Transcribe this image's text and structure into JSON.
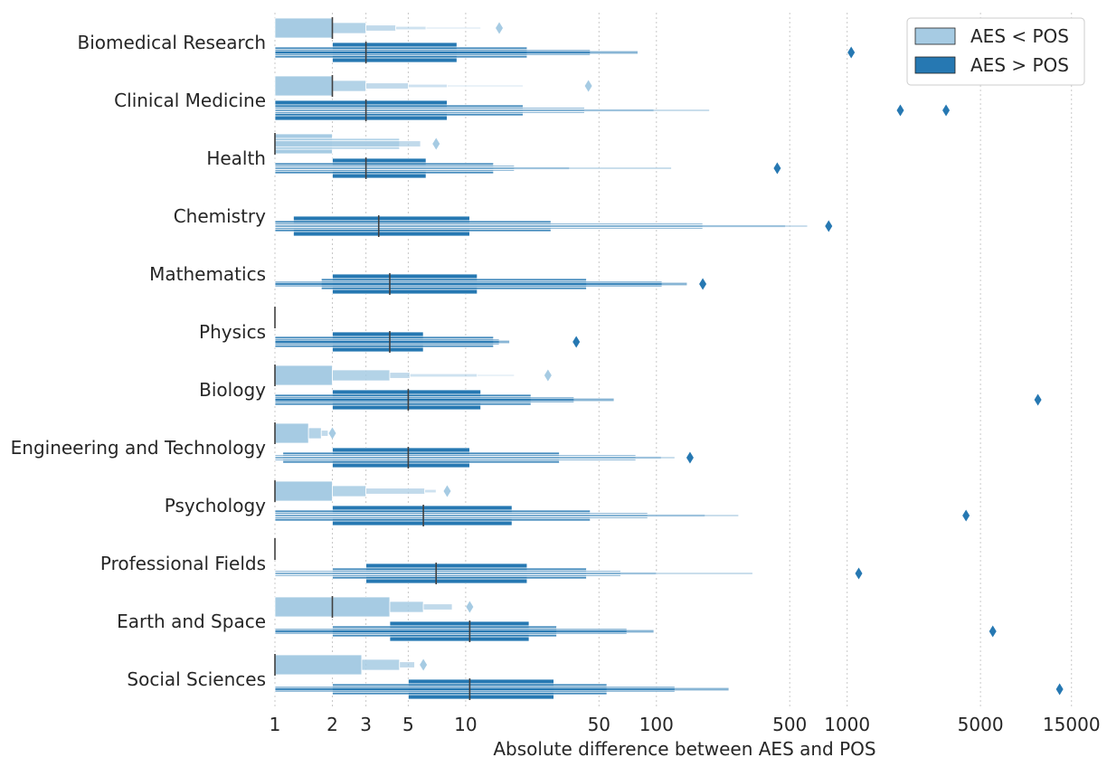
{
  "chart_data": {
    "type": "boxen",
    "orientation": "horizontal",
    "xscale": "log",
    "xlim": [
      1,
      20000
    ],
    "xlabel": "Absolute difference between AES and POS",
    "ylabel": "",
    "grid": "vertical dotted",
    "legend_position": "top-right",
    "x_ticks": [
      1,
      2,
      3,
      5,
      10,
      50,
      100,
      500,
      1000,
      5000,
      15000
    ],
    "x_tick_labels": [
      "1",
      "2",
      "3",
      "5",
      "10",
      "50",
      "100",
      "500",
      "1000",
      "5000",
      "15000"
    ],
    "colors": {
      "AES < POS": "#a6cbe3",
      "AES > POS": "#2678b2",
      "median": "#404040",
      "grid": "#c8c8c8"
    },
    "series_names": [
      "AES < POS",
      "AES > POS"
    ],
    "categories": [
      {
        "name": "Biomedical Research",
        "lt": {
          "median": 2,
          "boxes": [
            [
              1,
              2
            ],
            [
              2,
              3
            ],
            [
              3,
              4.3
            ],
            [
              4.3,
              6.2
            ],
            [
              6.2,
              12
            ]
          ],
          "outliers": [
            15
          ]
        },
        "gt": {
          "median": 3,
          "boxes": [
            [
              2,
              9
            ],
            [
              1,
              21
            ],
            [
              1,
              45
            ],
            [
              1,
              80
            ]
          ],
          "outliers": [
            1050
          ]
        }
      },
      {
        "name": "Clinical Medicine",
        "lt": {
          "median": 2,
          "boxes": [
            [
              1,
              2
            ],
            [
              2,
              3
            ],
            [
              3,
              5
            ],
            [
              5,
              8
            ],
            [
              8,
              20
            ]
          ],
          "outliers": [
            44
          ]
        },
        "gt": {
          "median": 3,
          "boxes": [
            [
              1,
              8
            ],
            [
              1,
              20
            ],
            [
              1,
              42
            ],
            [
              1,
              97
            ],
            [
              1,
              190
            ]
          ],
          "outliers": [
            1900,
            3300
          ]
        }
      },
      {
        "name": "Health",
        "lt": {
          "median": 1,
          "boxes": [
            [
              1,
              2
            ],
            [
              1,
              4.5
            ],
            [
              1,
              5.8
            ]
          ],
          "outliers": [
            7
          ]
        },
        "gt": {
          "median": 3,
          "boxes": [
            [
              2,
              6.2
            ],
            [
              1,
              14
            ],
            [
              1,
              18
            ],
            [
              1,
              35
            ],
            [
              1,
              120
            ]
          ],
          "outliers": [
            430
          ]
        }
      },
      {
        "name": "Chemistry",
        "lt": null,
        "gt": {
          "median": 3.5,
          "boxes": [
            [
              1.25,
              10.5
            ],
            [
              1,
              28
            ],
            [
              1,
              175
            ],
            [
              1,
              475
            ],
            [
              1,
              620
            ]
          ],
          "outliers": [
            800
          ]
        }
      },
      {
        "name": "Mathematics",
        "lt": null,
        "gt": {
          "median": 4,
          "boxes": [
            [
              2,
              11.5
            ],
            [
              1.75,
              43
            ],
            [
              1,
              107
            ],
            [
              1,
              145
            ]
          ],
          "outliers": [
            175
          ]
        }
      },
      {
        "name": "Physics",
        "lt": {
          "median": 1,
          "boxes": [],
          "outliers": []
        },
        "gt": {
          "median": 4,
          "boxes": [
            [
              2,
              6
            ],
            [
              1,
              14
            ],
            [
              1,
              15
            ],
            [
              1,
              17
            ]
          ],
          "outliers": [
            38
          ]
        }
      },
      {
        "name": "Biology",
        "lt": {
          "median": 1,
          "boxes": [
            [
              1,
              2
            ],
            [
              2,
              4
            ],
            [
              4,
              5.1
            ],
            [
              5.1,
              11.5
            ],
            [
              11.5,
              18
            ]
          ],
          "outliers": [
            27
          ]
        },
        "gt": {
          "median": 5,
          "boxes": [
            [
              2,
              12
            ],
            [
              1,
              22
            ],
            [
              1,
              37
            ],
            [
              1,
              60
            ]
          ],
          "outliers": [
            10000
          ]
        }
      },
      {
        "name": "Engineering and Technology",
        "lt": {
          "median": 1,
          "boxes": [
            [
              1,
              1.5
            ],
            [
              1.5,
              1.75
            ],
            [
              1.75,
              1.9
            ]
          ],
          "outliers": [
            2
          ]
        },
        "gt": {
          "median": 5,
          "boxes": [
            [
              2,
              10.5
            ],
            [
              1.1,
              31
            ],
            [
              1,
              78
            ],
            [
              1,
              106
            ],
            [
              1,
              125
            ]
          ],
          "outliers": [
            150
          ]
        }
      },
      {
        "name": "Psychology",
        "lt": {
          "median": 1,
          "boxes": [
            [
              1,
              2
            ],
            [
              2,
              3
            ],
            [
              3,
              6.1
            ],
            [
              6.1,
              7
            ]
          ],
          "outliers": [
            8
          ]
        },
        "gt": {
          "median": 6,
          "boxes": [
            [
              2,
              17.5
            ],
            [
              1,
              45
            ],
            [
              1,
              90
            ],
            [
              1,
              180
            ],
            [
              1,
              270
            ]
          ],
          "outliers": [
            4200
          ]
        }
      },
      {
        "name": "Professional Fields",
        "lt": {
          "median": 1,
          "boxes": [],
          "outliers": []
        },
        "gt": {
          "median": 7,
          "boxes": [
            [
              3,
              21
            ],
            [
              2,
              43
            ],
            [
              1,
              65
            ],
            [
              1,
              100
            ],
            [
              1,
              320
            ]
          ],
          "outliers": [
            1150
          ]
        }
      },
      {
        "name": "Earth and Space",
        "lt": {
          "median": 2,
          "boxes": [
            [
              1,
              4
            ],
            [
              4,
              6
            ],
            [
              6,
              8.5
            ]
          ],
          "outliers": [
            10.5
          ]
        },
        "gt": {
          "median": 10.5,
          "boxes": [
            [
              4,
              21.5
            ],
            [
              2,
              30
            ],
            [
              1,
              70
            ],
            [
              1,
              97
            ]
          ],
          "outliers": [
            5800
          ]
        }
      },
      {
        "name": "Social Sciences",
        "lt": {
          "median": 1,
          "boxes": [
            [
              1,
              2.85
            ],
            [
              2.85,
              4.5
            ],
            [
              4.5,
              5.4
            ]
          ],
          "outliers": [
            6
          ]
        },
        "gt": {
          "median": 10.5,
          "boxes": [
            [
              5,
              29
            ],
            [
              2,
              55
            ],
            [
              1,
              125
            ],
            [
              1,
              240
            ]
          ],
          "outliers": [
            13000
          ]
        }
      }
    ]
  }
}
